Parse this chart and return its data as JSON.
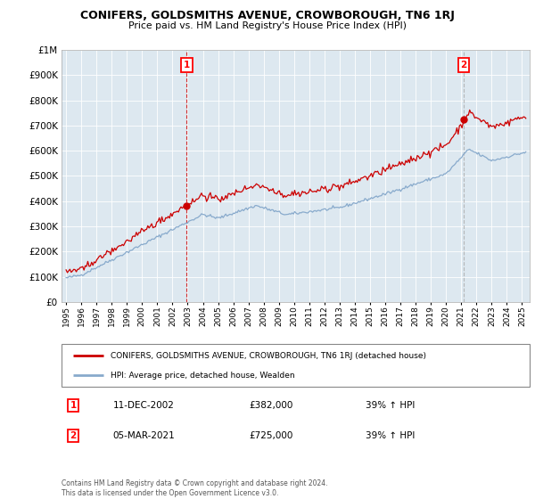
{
  "title": "CONIFERS, GOLDSMITHS AVENUE, CROWBOROUGH, TN6 1RJ",
  "subtitle": "Price paid vs. HM Land Registry's House Price Index (HPI)",
  "legend_line1": "CONIFERS, GOLDSMITHS AVENUE, CROWBOROUGH, TN6 1RJ (detached house)",
  "legend_line2": "HPI: Average price, detached house, Wealden",
  "annotation1_date": "11-DEC-2002",
  "annotation1_price": "£382,000",
  "annotation1_hpi": "39% ↑ HPI",
  "annotation2_date": "05-MAR-2021",
  "annotation2_price": "£725,000",
  "annotation2_hpi": "39% ↑ HPI",
  "footer": "Contains HM Land Registry data © Crown copyright and database right 2024.\nThis data is licensed under the Open Government Licence v3.0.",
  "sale1_x": 2002.94,
  "sale1_y": 382000,
  "sale2_x": 2021.17,
  "sale2_y": 725000,
  "red_color": "#cc0000",
  "blue_color": "#88aacc",
  "chart_bg": "#dde8f0",
  "background_color": "#ffffff",
  "grid_color": "#ffffff",
  "vline1_color": "#cc0000",
  "vline2_color": "#aaaaaa",
  "ylim": [
    0,
    1000000
  ],
  "xlim": [
    1994.7,
    2025.5
  ],
  "yticks": [
    0,
    100000,
    200000,
    300000,
    400000,
    500000,
    600000,
    700000,
    800000,
    900000,
    1000000
  ],
  "xtick_start": 1995,
  "xtick_end": 2025
}
